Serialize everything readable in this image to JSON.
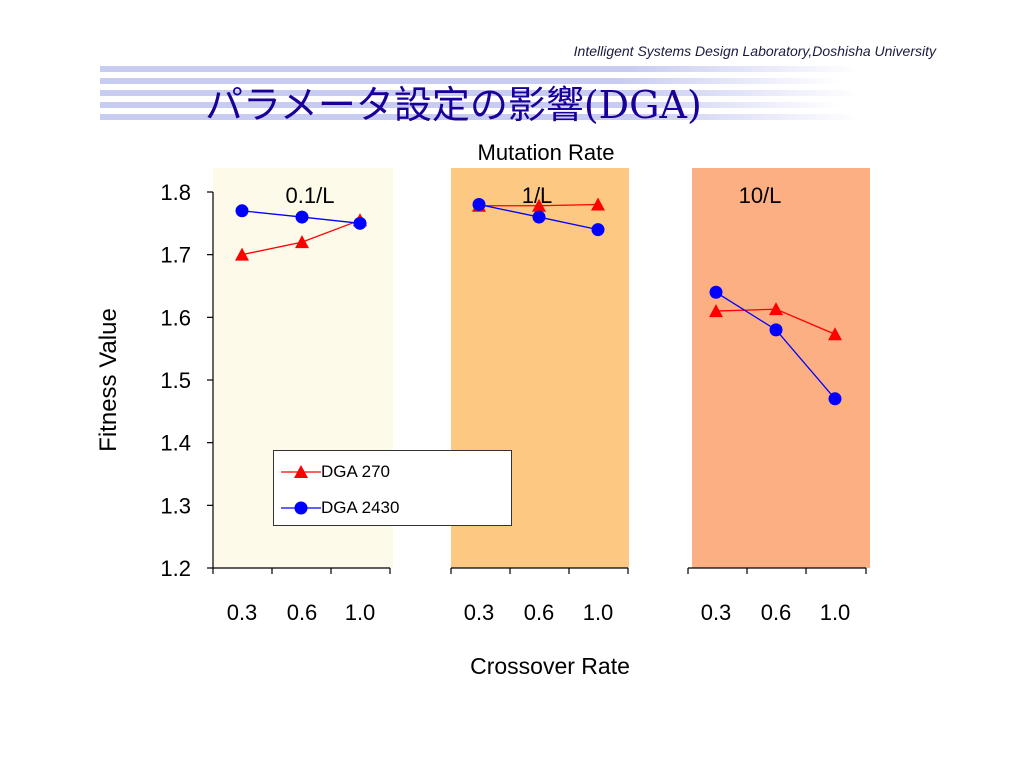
{
  "header": {
    "lab": "Intelligent Systems Design Laboratory,Doshisha University",
    "title": "パラメータ設定の影響(DGA)"
  },
  "colors": {
    "title": "#1a0099",
    "stripe": "#c9ccf2",
    "band_low": "#fefaea",
    "band_mid": "#fdc882",
    "band_high": "#fcaf82",
    "series_270": "#ff0000",
    "series_2430": "#0000ff"
  },
  "chart_data": {
    "type": "line",
    "title": "Mutation Rate",
    "xlabel": "Crossover Rate",
    "ylabel": "Fitness Value",
    "ylim": [
      1.2,
      1.8
    ],
    "yticks": [
      "1.2",
      "1.3",
      "1.4",
      "1.5",
      "1.6",
      "1.7",
      "1.8"
    ],
    "groups": [
      {
        "label": "0.1/L",
        "color_key": "band_low",
        "categories": [
          "0.3",
          "0.6",
          "1.0"
        ]
      },
      {
        "label": "1/L",
        "color_key": "band_mid",
        "categories": [
          "0.3",
          "0.6",
          "1.0"
        ]
      },
      {
        "label": "10/L",
        "color_key": "band_high",
        "categories": [
          "0.3",
          "0.6",
          "1.0"
        ]
      }
    ],
    "series": [
      {
        "name": "DGA 270",
        "marker": "triangle",
        "color_key": "series_270",
        "values": [
          [
            1.7,
            1.72,
            1.755
          ],
          [
            1.778,
            1.778,
            1.78
          ],
          [
            1.61,
            1.613,
            1.573
          ]
        ]
      },
      {
        "name": "DGA 2430",
        "marker": "circle",
        "color_key": "series_2430",
        "values": [
          [
            1.77,
            1.76,
            1.75
          ],
          [
            1.78,
            1.76,
            1.74
          ],
          [
            1.64,
            1.58,
            1.47
          ]
        ]
      }
    ],
    "legend": "center-left",
    "grid": false
  }
}
